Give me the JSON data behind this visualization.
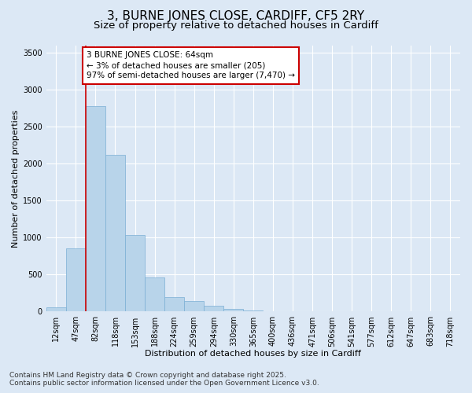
{
  "title_line1": "3, BURNE JONES CLOSE, CARDIFF, CF5 2RY",
  "title_line2": "Size of property relative to detached houses in Cardiff",
  "xlabel": "Distribution of detached houses by size in Cardiff",
  "ylabel": "Number of detached properties",
  "categories": [
    "12sqm",
    "47sqm",
    "82sqm",
    "118sqm",
    "153sqm",
    "188sqm",
    "224sqm",
    "259sqm",
    "294sqm",
    "330sqm",
    "365sqm",
    "400sqm",
    "436sqm",
    "471sqm",
    "506sqm",
    "541sqm",
    "577sqm",
    "612sqm",
    "647sqm",
    "683sqm",
    "718sqm"
  ],
  "values": [
    55,
    850,
    2780,
    2120,
    1040,
    460,
    195,
    145,
    75,
    40,
    20,
    0,
    0,
    0,
    0,
    0,
    0,
    0,
    0,
    0,
    0
  ],
  "bar_color": "#b8d4ea",
  "bar_edge_color": "#7aafd4",
  "vline_x_index": 1.5,
  "vline_color": "#cc0000",
  "annotation_text": "3 BURNE JONES CLOSE: 64sqm\n← 3% of detached houses are smaller (205)\n97% of semi-detached houses are larger (7,470) →",
  "annotation_box_color": "#cc0000",
  "annotation_text_color": "#000000",
  "annotation_facecolor": "#ffffff",
  "ylim": [
    0,
    3600
  ],
  "yticks": [
    0,
    500,
    1000,
    1500,
    2000,
    2500,
    3000,
    3500
  ],
  "background_color": "#dce8f5",
  "plot_bg_color": "#dce8f5",
  "grid_color": "#ffffff",
  "footer_line1": "Contains HM Land Registry data © Crown copyright and database right 2025.",
  "footer_line2": "Contains public sector information licensed under the Open Government Licence v3.0.",
  "title_fontsize": 11,
  "subtitle_fontsize": 9.5,
  "axis_label_fontsize": 8,
  "tick_fontsize": 7,
  "annotation_fontsize": 7.5,
  "footer_fontsize": 6.5
}
